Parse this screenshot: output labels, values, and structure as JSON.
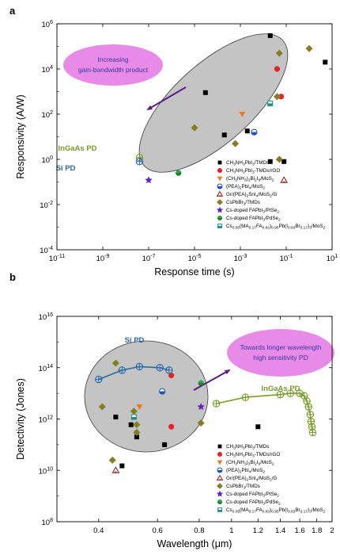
{
  "chart_data": [
    {
      "type": "scatter",
      "panel_label": "a",
      "xlabel": "Response time (s)",
      "ylabel": "Responsivity (A/W)",
      "x_scale": "log",
      "y_scale": "log",
      "xlim": [
        1e-11,
        10
      ],
      "ylim": [
        0.0001,
        1000000.0
      ],
      "x_tick_labels": [
        "10-11",
        "10-9",
        "10-7",
        "10-5",
        "10-3",
        "10-1",
        "101"
      ],
      "y_tick_labels": [
        "10-4",
        "10-2",
        "100",
        "102",
        "104",
        "106"
      ],
      "annotation": [
        "Increasing",
        "gain-bandwidth product"
      ],
      "reference_labels": [
        {
          "text": "InGaAs PD",
          "color": "#7a9c2a"
        },
        {
          "text": "Si PD",
          "color": "#2a6aa8"
        }
      ],
      "series": [
        {
          "name": "CH3NH3PbI3/TMDs",
          "marker": "square",
          "color": "#000000",
          "points": [
            [
              0.02,
              300000
            ],
            [
              5.0,
              20000
            ],
            [
              3e-05,
              900
            ],
            [
              0.0002,
              12
            ],
            [
              0.002,
              18
            ],
            [
              0.02,
              0.8
            ],
            [
              0.08,
              0.8
            ]
          ]
        },
        {
          "name": "CH3NH3PbI3-TMDs/rGO",
          "marker": "circle",
          "color": "#e8202a",
          "points": [
            [
              0.04,
              10000
            ],
            [
              0.06,
              600
            ]
          ]
        },
        {
          "name": "(CH3NH3)3Bi2I9/MoS2",
          "marker": "triangle-down",
          "color": "#f07820",
          "points": [
            [
              0.0012,
              100
            ]
          ]
        },
        {
          "name": "(PEA)2PbI4/MoS2",
          "marker": "half-circle",
          "color": "#2050c0",
          "points": [
            [
              0.004,
              16
            ]
          ]
        },
        {
          "name": "Gr/(PEA)2SnI4/MoS2/G",
          "marker": "triangle-open",
          "color": "#8a1a1a",
          "points": [
            [
              0.08,
              0.12
            ]
          ]
        },
        {
          "name": "CsPbBr3/TMDs",
          "marker": "diamond",
          "color": "#808020",
          "points": [
            [
              0.05,
              50000
            ],
            [
              1.0,
              80000
            ],
            [
              1e-05,
              25
            ],
            [
              0.0006,
              5
            ],
            [
              0.05,
              1.0
            ],
            [
              0.04,
              600
            ]
          ]
        },
        {
          "name": "Cs-doped FAPbI3/PtSe2",
          "marker": "star",
          "color": "#6020c0",
          "points": [
            [
              1e-07,
              0.12
            ]
          ]
        },
        {
          "name": "Cs-doped FAPbI3/PdSe2",
          "marker": "circle-half-green",
          "color": "#108030",
          "points": [
            [
              2e-06,
              0.25
            ]
          ]
        },
        {
          "name": "Cs0.05(MA0.17FA0.83)0.95Pb(I0.83Br0.17)3/MoS2",
          "marker": "square-half",
          "color": "#1a8a8a",
          "points": [
            [
              0.02,
              300
            ]
          ]
        },
        {
          "name": "InGaAs PD",
          "marker": "cross-circle",
          "color": "#7a9c2a",
          "points": [
            [
              4e-08,
              1.2
            ]
          ]
        },
        {
          "name": "Si PD",
          "marker": "cross-circle",
          "color": "#2a6aa8",
          "points": [
            [
              4e-08,
              0.8
            ]
          ]
        }
      ]
    },
    {
      "type": "scatter",
      "panel_label": "b",
      "xlabel": "Wavelength (μm)",
      "ylabel": "Detectivity (Jones)",
      "x_scale": "log",
      "y_scale": "log",
      "xlim": [
        0.3,
        2
      ],
      "ylim": [
        100000000.0,
        1e+16
      ],
      "x_tick_labels": [
        "0.4",
        "0.6",
        "0.8",
        "1",
        "1.2",
        "1.4",
        "1.6",
        "1.8",
        "2"
      ],
      "y_tick_labels": [
        "108",
        "1010",
        "1012",
        "1014",
        "1016"
      ],
      "annotation": [
        "Towards longer wavelength",
        "high sensitivity PD"
      ],
      "reference_labels": [
        {
          "text": "Si PD",
          "color": "#2a6aa8"
        },
        {
          "text": "InGaAs PD",
          "color": "#7a9c2a"
        }
      ],
      "series": [
        {
          "name": "CH3NH3PbI3/TMDs",
          "marker": "square",
          "color": "#000000",
          "points": [
            [
              0.45,
              1200000000000.0
            ],
            [
              0.5,
              600000000000.0
            ],
            [
              0.52,
              200000000000.0
            ],
            [
              0.47,
              15000000000.0
            ],
            [
              0.63,
              100000000000.0
            ],
            [
              1.2,
              500000000000.0
            ]
          ]
        },
        {
          "name": "CH3NH3PbI3-TMDs/rGO",
          "marker": "circle",
          "color": "#e8202a",
          "points": [
            [
              0.66,
              50000000000000.0
            ],
            [
              0.66,
              500000000000.0
            ]
          ]
        },
        {
          "name": "(CH3NH3)3Bi2I9/MoS2",
          "marker": "triangle-down",
          "color": "#f07820",
          "points": [
            [
              0.53,
              3000000000000.0
            ]
          ]
        },
        {
          "name": "(PEA)2PbI4/MoS2",
          "marker": "half-circle",
          "color": "#2050c0",
          "points": [
            [
              0.62,
              12000000000000.0
            ]
          ]
        },
        {
          "name": "Gr/(PEA)2SnI4/MoS2/G",
          "marker": "triangle-open",
          "color": "#8a1a1a",
          "points": [
            [
              0.45,
              10000000000.0
            ]
          ]
        },
        {
          "name": "CsPbBr3/TMDs",
          "marker": "diamond",
          "color": "#808020",
          "points": [
            [
              0.41,
              3000000000000.0
            ],
            [
              0.45,
              150000000000000.0
            ],
            [
              0.52,
              300000000000.0
            ],
            [
              0.52,
              600000000000.0
            ],
            [
              0.44,
              25000000000.0
            ],
            [
              0.81,
              700000000000.0
            ],
            [
              0.51,
              2000000000000.0
            ]
          ]
        },
        {
          "name": "Cs-doped FAPbI3/PtSe2",
          "marker": "star",
          "color": "#6020c0",
          "points": [
            [
              0.81,
              3000000000000.0
            ]
          ]
        },
        {
          "name": "Cs-doped FAPbI3/PdSe2",
          "marker": "circle-half-green",
          "color": "#108030",
          "points": [
            [
              0.81,
              25000000000000.0
            ]
          ]
        },
        {
          "name": "Cs0.05(MA0.17FA0.83)0.95Pb(I0.83Br0.17)3/MoS2",
          "marker": "square-half",
          "color": "#1a8a8a",
          "points": [
            [
              0.51,
              1200000000000.0
            ]
          ]
        },
        {
          "name": "Si PD",
          "marker": "cross-circle",
          "color": "#2a6aa8",
          "points": [
            [
              0.4,
              35000000000000.0
            ],
            [
              0.47,
              80000000000000.0
            ],
            [
              0.53,
              110000000000000.0
            ],
            [
              0.61,
              100000000000000.0
            ],
            [
              0.65,
              80000000000000.0
            ]
          ]
        },
        {
          "name": "InGaAs PD",
          "marker": "cross-circle",
          "color": "#7a9c2a",
          "points": [
            [
              0.9,
              4000000000000.0
            ],
            [
              1.1,
              7000000000000.0
            ],
            [
              1.4,
              9000000000000.0
            ],
            [
              1.5,
              10000000000000.0
            ],
            [
              1.6,
              10000000000000.0
            ],
            [
              1.65,
              8000000000000.0
            ],
            [
              1.68,
              5000000000000.0
            ],
            [
              1.7,
              3000000000000.0
            ],
            [
              1.72,
              1500000000000.0
            ],
            [
              1.73,
              800000000000.0
            ],
            [
              1.74,
              500000000000.0
            ],
            [
              1.75,
              300000000000.0
            ]
          ]
        }
      ]
    }
  ]
}
